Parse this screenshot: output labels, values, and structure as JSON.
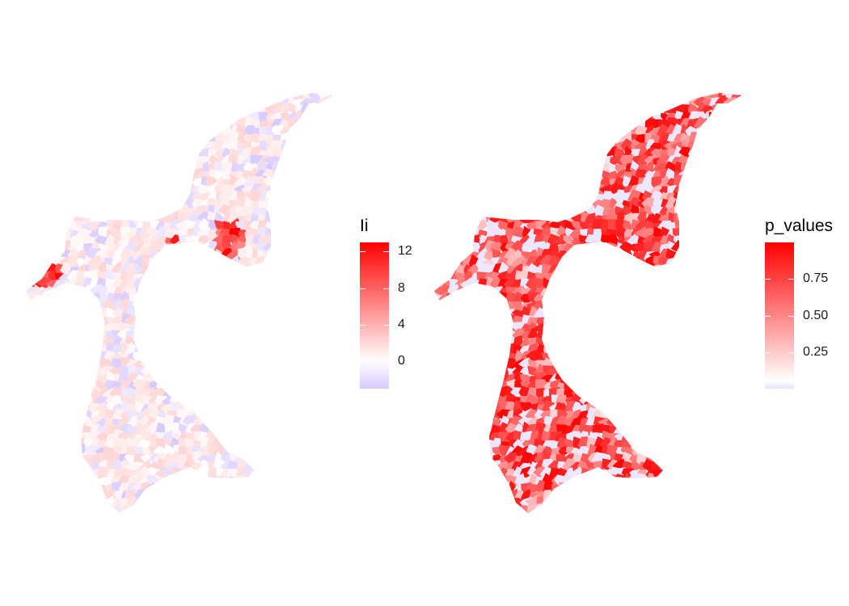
{
  "chart_data": [
    {
      "type": "heatmap",
      "legend": {
        "title": "Ii",
        "ticks": [
          0,
          4,
          8,
          12
        ],
        "tick_labels": [
          "0",
          "4",
          "8",
          "12"
        ],
        "range": [
          -3,
          13
        ],
        "colors": {
          "low": "#d6c9ff",
          "mid": "#ffffff",
          "high": "#ff0000"
        }
      }
    },
    {
      "type": "heatmap",
      "legend": {
        "title": "p_values",
        "ticks": [
          0.25,
          0.5,
          0.75
        ],
        "tick_labels": [
          "0.25",
          "0.50",
          "0.75"
        ],
        "range": [
          0.0,
          1.0
        ],
        "colors": {
          "low": "#e7e0ff",
          "mid": "#ffffff",
          "high": "#ff0000"
        }
      }
    }
  ]
}
